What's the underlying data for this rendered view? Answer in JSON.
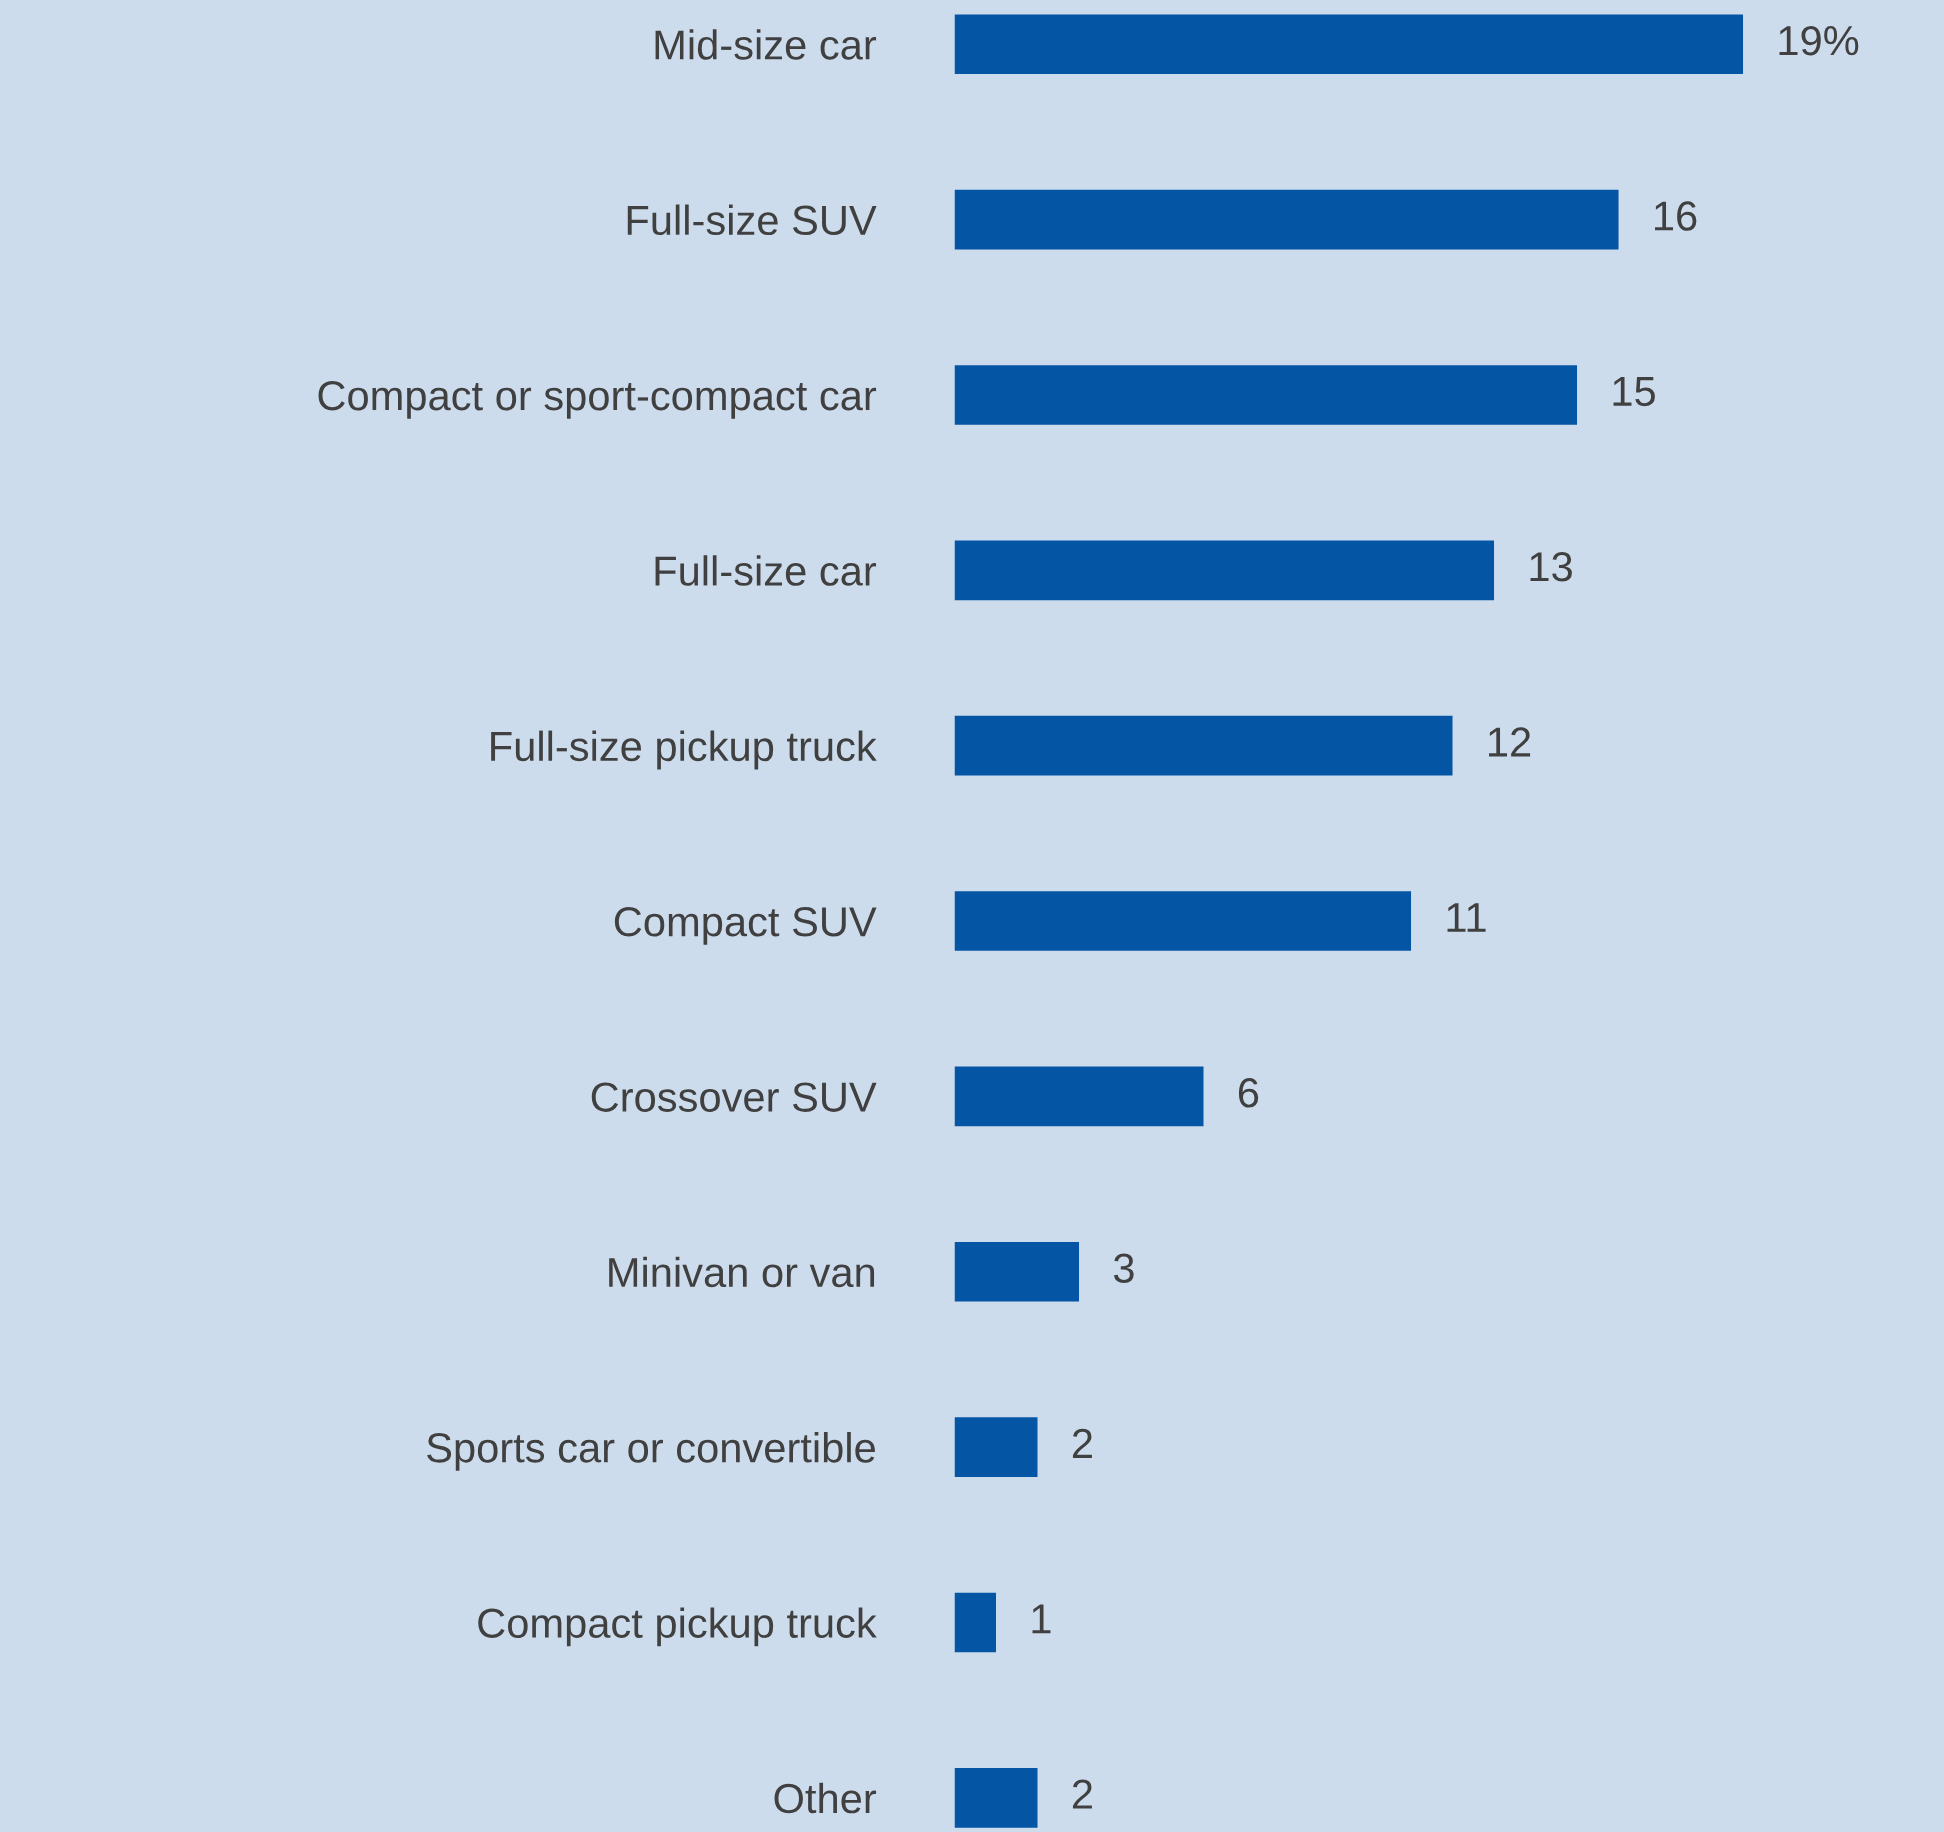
{
  "chart_data": {
    "type": "bar",
    "orientation": "horizontal",
    "categories": [
      "Mid-size car",
      "Full-size SUV",
      "Compact or sport-compact car",
      "Full-size car",
      "Full-size pickup truck",
      "Compact SUV",
      "Crossover SUV",
      "Minivan or van",
      "Sports car or convertible",
      "Compact pickup truck",
      "Other"
    ],
    "values": [
      19,
      16,
      15,
      13,
      12,
      11,
      6,
      3,
      2,
      1,
      2
    ],
    "value_labels": [
      "19%",
      "16",
      "15",
      "13",
      "12",
      "11",
      "6",
      "3",
      "2",
      "1",
      "2"
    ],
    "color": "#0555a5",
    "grid": false,
    "legend": false
  }
}
